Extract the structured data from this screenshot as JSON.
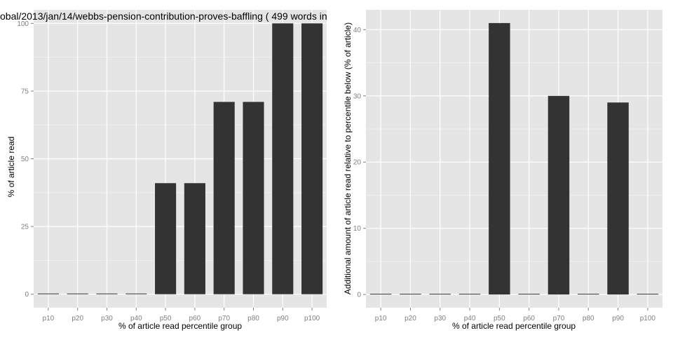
{
  "colors": {
    "panel_background": "#e5e5e5",
    "grid_major": "#ffffff",
    "grid_minor": "#f2f2f2",
    "bar_fill": "#333333",
    "tick_text": "#7f7f7f",
    "title_text": "#000000"
  },
  "chart_data": [
    {
      "type": "bar",
      "title": "obal/2013/jan/14/webbs-pension-contribution-proves-baffling ( 499 words in",
      "xlabel": "% of article read percentile group",
      "ylabel": "% of article read",
      "categories": [
        "p10",
        "p20",
        "p30",
        "p40",
        "p50",
        "p60",
        "p70",
        "p80",
        "p90",
        "p100"
      ],
      "values": [
        0,
        0,
        0,
        0,
        41,
        41,
        71,
        71,
        100,
        100
      ],
      "ylim": [
        -5,
        105
      ],
      "yticks": [
        0,
        25,
        50,
        75,
        100
      ],
      "yticklabels": [
        "0",
        "25",
        "50",
        "75",
        "100"
      ],
      "grid": true,
      "legend": "none"
    },
    {
      "type": "bar",
      "title": "",
      "xlabel": "% of article read percentile group",
      "ylabel": "Additional amount of article read relative to percentile below (% of article)",
      "categories": [
        "p10",
        "p20",
        "p30",
        "p40",
        "p50",
        "p60",
        "p70",
        "p80",
        "p90",
        "p100"
      ],
      "values": [
        0,
        0,
        0,
        0,
        41,
        0,
        30,
        0,
        29,
        0
      ],
      "ylim": [
        -2,
        43
      ],
      "yticks": [
        0,
        10,
        20,
        30,
        40
      ],
      "yticklabels": [
        "0",
        "10",
        "20",
        "30",
        "40"
      ],
      "grid": true,
      "legend": "none"
    }
  ]
}
